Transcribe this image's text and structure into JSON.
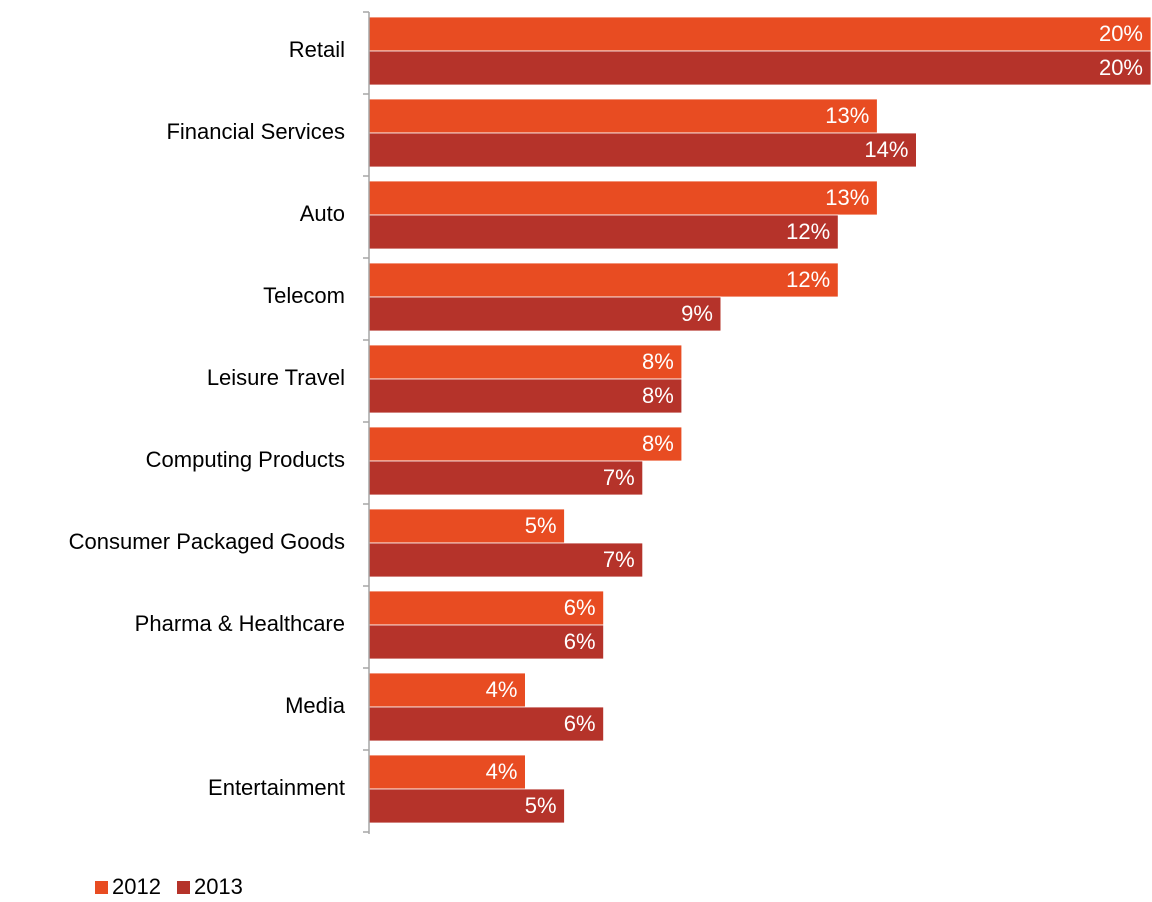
{
  "chart_data": {
    "type": "bar",
    "orientation": "horizontal",
    "categories": [
      "Retail",
      "Financial Services",
      "Auto",
      "Telecom",
      "Leisure Travel",
      "Computing Products",
      "Consumer Packaged Goods",
      "Pharma & Healthcare",
      "Media",
      "Entertainment"
    ],
    "series": [
      {
        "name": "2012",
        "color": "#E84C22",
        "values": [
          20,
          13,
          13,
          12,
          8,
          8,
          5,
          6,
          4,
          4
        ],
        "labels": [
          "20%",
          "13%",
          "13%",
          "12%",
          "8%",
          "8%",
          "5%",
          "6%",
          "4%",
          "4%"
        ]
      },
      {
        "name": "2013",
        "color": "#B5332A",
        "values": [
          20,
          14,
          12,
          9,
          8,
          7,
          7,
          6,
          6,
          5
        ],
        "labels": [
          "20%",
          "14%",
          "12%",
          "9%",
          "8%",
          "7%",
          "7%",
          "6%",
          "6%",
          "5%"
        ]
      }
    ],
    "xlim": [
      0,
      20
    ],
    "value_unit": "%",
    "grid": false,
    "legend_position": "bottom-left",
    "title": "",
    "xlabel": "",
    "ylabel": ""
  }
}
